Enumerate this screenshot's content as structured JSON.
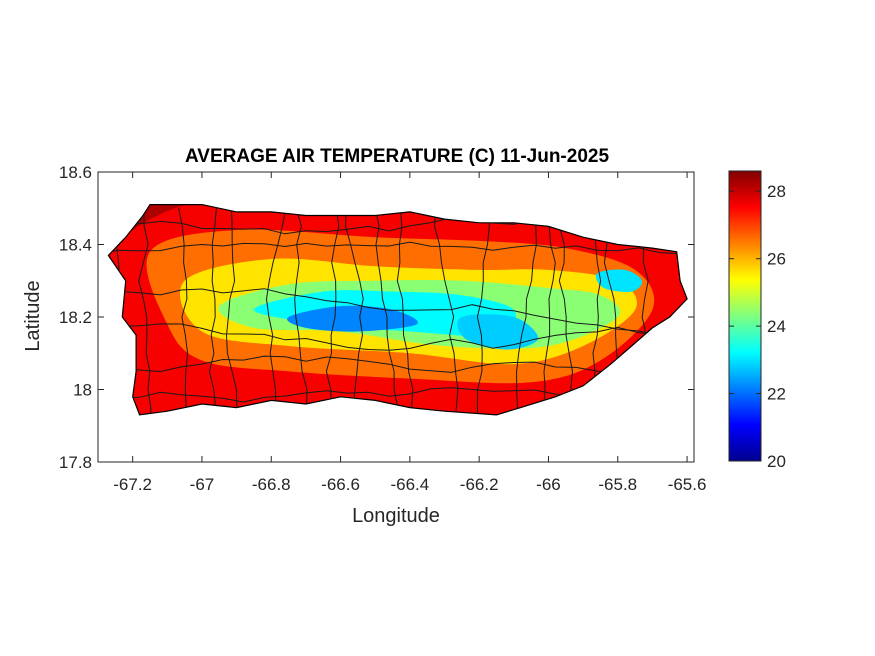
{
  "chart_data": {
    "type": "heatmap",
    "title": "AVERAGE AIR TEMPERATURE (C) 11-Jun-2025",
    "xlabel": "Longitude",
    "ylabel": "Latitude",
    "xlim": [
      -67.3,
      -65.58
    ],
    "ylim": [
      17.8,
      18.6
    ],
    "xticks": [
      -67.2,
      -67,
      -66.8,
      -66.6,
      -66.4,
      -66.2,
      -66,
      -65.8,
      -65.6
    ],
    "yticks": [
      17.8,
      18,
      18.2,
      18.4,
      18.6
    ],
    "xtick_labels": [
      "-67.2",
      "-67",
      "-66.8",
      "-66.6",
      "-66.4",
      "-66.2",
      "-66",
      "-65.8",
      "-65.6"
    ],
    "ytick_labels": [
      "17.8",
      "18",
      "18.2",
      "18.4",
      "18.6"
    ],
    "colorbar": {
      "colormap": "jet",
      "range": [
        20,
        28.6
      ],
      "ticks": [
        20,
        22,
        24,
        26,
        28
      ],
      "tick_labels": [
        "20",
        "22",
        "24",
        "26",
        "28"
      ]
    },
    "island_outline": [
      [
        -67.27,
        18.37
      ],
      [
        -67.22,
        18.42
      ],
      [
        -67.17,
        18.48
      ],
      [
        -67.15,
        18.51
      ],
      [
        -67.0,
        18.51
      ],
      [
        -66.9,
        18.49
      ],
      [
        -66.8,
        18.49
      ],
      [
        -66.7,
        18.48
      ],
      [
        -66.6,
        18.48
      ],
      [
        -66.5,
        18.48
      ],
      [
        -66.4,
        18.49
      ],
      [
        -66.3,
        18.47
      ],
      [
        -66.2,
        18.46
      ],
      [
        -66.1,
        18.46
      ],
      [
        -66.0,
        18.45
      ],
      [
        -65.9,
        18.42
      ],
      [
        -65.8,
        18.4
      ],
      [
        -65.7,
        18.39
      ],
      [
        -65.63,
        18.38
      ],
      [
        -65.62,
        18.3
      ],
      [
        -65.6,
        18.25
      ],
      [
        -65.65,
        18.2
      ],
      [
        -65.7,
        18.17
      ],
      [
        -65.76,
        18.12
      ],
      [
        -65.82,
        18.07
      ],
      [
        -65.9,
        18.01
      ],
      [
        -65.98,
        17.98
      ],
      [
        -66.08,
        17.95
      ],
      [
        -66.15,
        17.93
      ],
      [
        -66.3,
        17.94
      ],
      [
        -66.4,
        17.95
      ],
      [
        -66.5,
        17.97
      ],
      [
        -66.6,
        17.98
      ],
      [
        -66.7,
        17.96
      ],
      [
        -66.8,
        17.97
      ],
      [
        -66.9,
        17.95
      ],
      [
        -67.0,
        17.96
      ],
      [
        -67.1,
        17.94
      ],
      [
        -67.18,
        17.93
      ],
      [
        -67.2,
        17.98
      ],
      [
        -67.19,
        18.05
      ],
      [
        -67.19,
        18.15
      ],
      [
        -67.23,
        18.2
      ],
      [
        -67.22,
        18.3
      ]
    ],
    "temperature_regions": [
      {
        "level": 27.6,
        "points": [
          [
            -67.28,
            18.37
          ],
          [
            -67.0,
            18.52
          ],
          [
            -66.5,
            18.5
          ],
          [
            -66.0,
            18.47
          ],
          [
            -65.6,
            18.4
          ],
          [
            -65.57,
            18.2
          ],
          [
            -65.9,
            17.97
          ],
          [
            -66.3,
            17.92
          ],
          [
            -67.0,
            17.93
          ],
          [
            -67.22,
            17.93
          ],
          [
            -67.26,
            18.2
          ]
        ]
      },
      {
        "level": 26.6,
        "points": [
          [
            -67.15,
            18.38
          ],
          [
            -66.9,
            18.44
          ],
          [
            -66.5,
            18.42
          ],
          [
            -66.2,
            18.41
          ],
          [
            -65.95,
            18.39
          ],
          [
            -65.75,
            18.33
          ],
          [
            -65.7,
            18.22
          ],
          [
            -65.85,
            18.08
          ],
          [
            -66.05,
            18.02
          ],
          [
            -66.4,
            18.03
          ],
          [
            -66.75,
            18.05
          ],
          [
            -67.0,
            18.08
          ],
          [
            -67.1,
            18.18
          ]
        ]
      },
      {
        "level": 25.6,
        "points": [
          [
            -67.05,
            18.3
          ],
          [
            -66.8,
            18.36
          ],
          [
            -66.5,
            18.34
          ],
          [
            -66.2,
            18.33
          ],
          [
            -66.0,
            18.33
          ],
          [
            -65.8,
            18.3
          ],
          [
            -65.75,
            18.22
          ],
          [
            -65.9,
            18.12
          ],
          [
            -66.1,
            18.07
          ],
          [
            -66.4,
            18.1
          ],
          [
            -66.75,
            18.12
          ],
          [
            -67.0,
            18.16
          ]
        ]
      },
      {
        "level": 24.4,
        "points": [
          [
            -66.95,
            18.23
          ],
          [
            -66.75,
            18.29
          ],
          [
            -66.5,
            18.3
          ],
          [
            -66.25,
            18.3
          ],
          [
            -66.0,
            18.28
          ],
          [
            -65.85,
            18.26
          ],
          [
            -65.8,
            18.2
          ],
          [
            -66.0,
            18.12
          ],
          [
            -66.3,
            18.12
          ],
          [
            -66.6,
            18.16
          ],
          [
            -66.85,
            18.17
          ]
        ]
      },
      {
        "level": 23.2,
        "points": [
          [
            -66.85,
            18.22
          ],
          [
            -66.65,
            18.27
          ],
          [
            -66.45,
            18.27
          ],
          [
            -66.25,
            18.26
          ],
          [
            -66.1,
            18.22
          ],
          [
            -66.15,
            18.15
          ],
          [
            -66.4,
            18.16
          ],
          [
            -66.65,
            18.18
          ]
        ]
      },
      {
        "level": 22.2,
        "points": [
          [
            -66.75,
            18.2
          ],
          [
            -66.6,
            18.23
          ],
          [
            -66.45,
            18.22
          ],
          [
            -66.38,
            18.18
          ],
          [
            -66.55,
            18.16
          ],
          [
            -66.7,
            18.17
          ]
        ]
      },
      {
        "level": 23.0,
        "points": [
          [
            -65.86,
            18.32
          ],
          [
            -65.78,
            18.33
          ],
          [
            -65.73,
            18.3
          ],
          [
            -65.76,
            18.27
          ],
          [
            -65.84,
            18.28
          ]
        ]
      },
      {
        "level": 22.8,
        "points": [
          [
            -66.25,
            18.2
          ],
          [
            -66.1,
            18.2
          ],
          [
            -66.03,
            18.14
          ],
          [
            -66.12,
            18.11
          ],
          [
            -66.24,
            18.14
          ]
        ]
      }
    ]
  }
}
